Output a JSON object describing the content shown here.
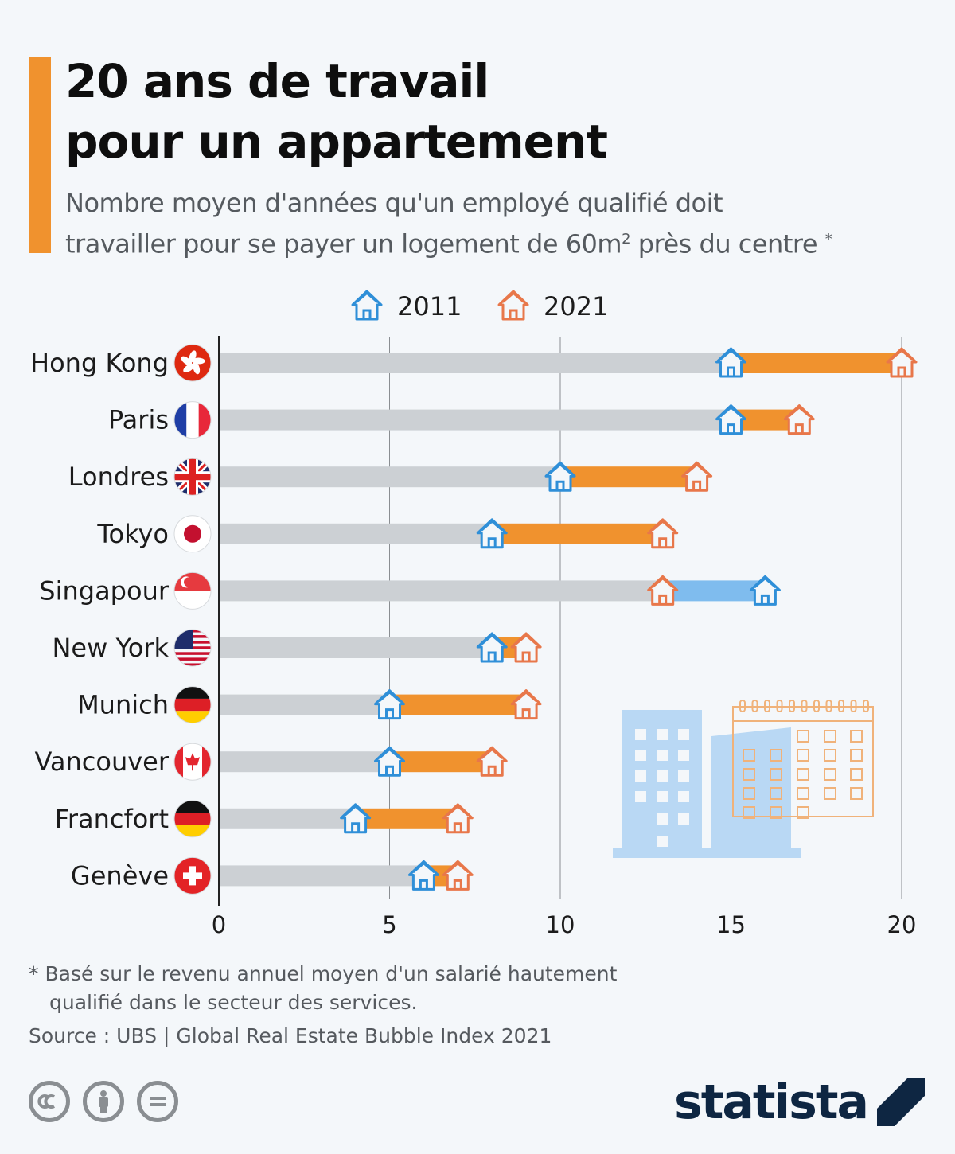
{
  "header": {
    "title_line1": "20 ans de travail",
    "title_line2": "pour un appartement",
    "subtitle_line1": "Nombre moyen d'années qu'un employé qualifié doit",
    "subtitle_line2a": "travailler pour se payer un logement de 60m",
    "subtitle_sup": "2",
    "subtitle_line2b": " près du centre ",
    "subtitle_star": "*"
  },
  "colors": {
    "accent": "#f0922e",
    "bar_2011": "#2f8fd8",
    "bar_2021": "#e8774a",
    "increase": "#f0922e",
    "decrease": "#7fbcee",
    "track": "#ccd0d4",
    "gridline": "#8a8e92"
  },
  "chart_data": {
    "type": "dumbbell",
    "legend": [
      "2011",
      "2021"
    ],
    "legend_position": "top",
    "x_ticks": [
      0,
      5,
      10,
      15,
      20
    ],
    "xlim": [
      0,
      20
    ],
    "categories": [
      "Hong Kong",
      "Paris",
      "Londres",
      "Tokyo",
      "Singapour",
      "New York",
      "Munich",
      "Vancouver",
      "Francfort",
      "Genève"
    ],
    "series": [
      {
        "name": "2011",
        "values": [
          15,
          15,
          10,
          8,
          16,
          8,
          5,
          5,
          4,
          6
        ]
      },
      {
        "name": "2021",
        "values": [
          20,
          17,
          14,
          13,
          13,
          9,
          9,
          8,
          7,
          7
        ]
      }
    ],
    "flag_icons": [
      "hong-kong-flag-icon",
      "france-flag-icon",
      "uk-flag-icon",
      "japan-flag-icon",
      "singapore-flag-icon",
      "usa-flag-icon",
      "germany-flag-icon",
      "canada-flag-icon",
      "germany-flag-icon",
      "switzerland-flag-icon"
    ]
  },
  "footer": {
    "footnote_line1": "* Basé sur le revenu annuel moyen d'un salarié hautement",
    "footnote_line2": "qualifié dans le secteur des services.",
    "source": "Source : UBS | Global Real Estate Bubble Index 2021",
    "license_icons": [
      "cc-icon",
      "attribution-icon",
      "no-derivatives-icon"
    ],
    "logo": "statista"
  }
}
